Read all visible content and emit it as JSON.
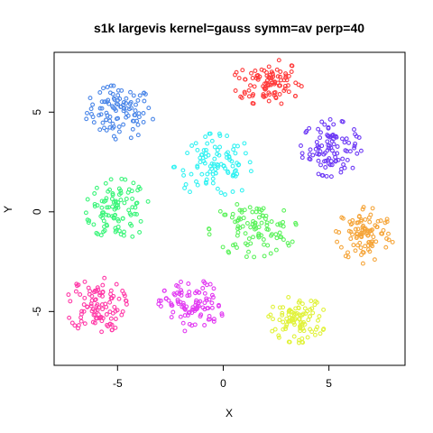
{
  "chart_data": {
    "type": "scatter",
    "title": "s1k largevis kernel=gauss symm=av perp=40",
    "xlabel": "X",
    "ylabel": "Y",
    "xlim": [
      -8,
      8.6
    ],
    "ylim": [
      -7.7,
      8
    ],
    "xticks": [
      -5,
      0,
      5
    ],
    "yticks": [
      -5,
      0,
      5
    ],
    "xtick_labels": [
      "-5",
      "0",
      "5"
    ],
    "ytick_labels": [
      "-5",
      "0",
      "5"
    ],
    "grid": false,
    "legend": "none",
    "marker": "open-circle",
    "clusters": [
      {
        "color": "#4a86e8",
        "center": [
          -4.9,
          5.0
        ],
        "spread": [
          1.25,
          1.05
        ],
        "n": 100
      },
      {
        "color": "#ff3b3b",
        "center": [
          2.1,
          6.5
        ],
        "spread": [
          1.25,
          0.9
        ],
        "n": 100
      },
      {
        "color": "#6e3bf5",
        "center": [
          5.1,
          3.2
        ],
        "spread": [
          1.1,
          1.1
        ],
        "n": 100
      },
      {
        "color": "#34f2f2",
        "center": [
          -0.4,
          2.3
        ],
        "spread": [
          1.5,
          1.25
        ],
        "n": 100
      },
      {
        "color": "#3cf57b",
        "center": [
          -5.0,
          0.1
        ],
        "spread": [
          1.15,
          1.2
        ],
        "n": 100
      },
      {
        "color": "#5ef25e",
        "center": [
          1.4,
          -0.9
        ],
        "spread": [
          1.6,
          1.05
        ],
        "n": 100
      },
      {
        "color": "#f5a53a",
        "center": [
          6.7,
          -1.1
        ],
        "spread": [
          1.05,
          1.15
        ],
        "n": 100
      },
      {
        "color": "#ff3ba8",
        "center": [
          -6.0,
          -4.7
        ],
        "spread": [
          1.1,
          1.1
        ],
        "n": 100
      },
      {
        "color": "#e23bf2",
        "center": [
          -1.5,
          -4.7
        ],
        "spread": [
          1.2,
          1.0
        ],
        "n": 100
      },
      {
        "color": "#e1f23b",
        "center": [
          3.5,
          -5.4
        ],
        "spread": [
          1.05,
          0.9
        ],
        "n": 100
      }
    ]
  }
}
